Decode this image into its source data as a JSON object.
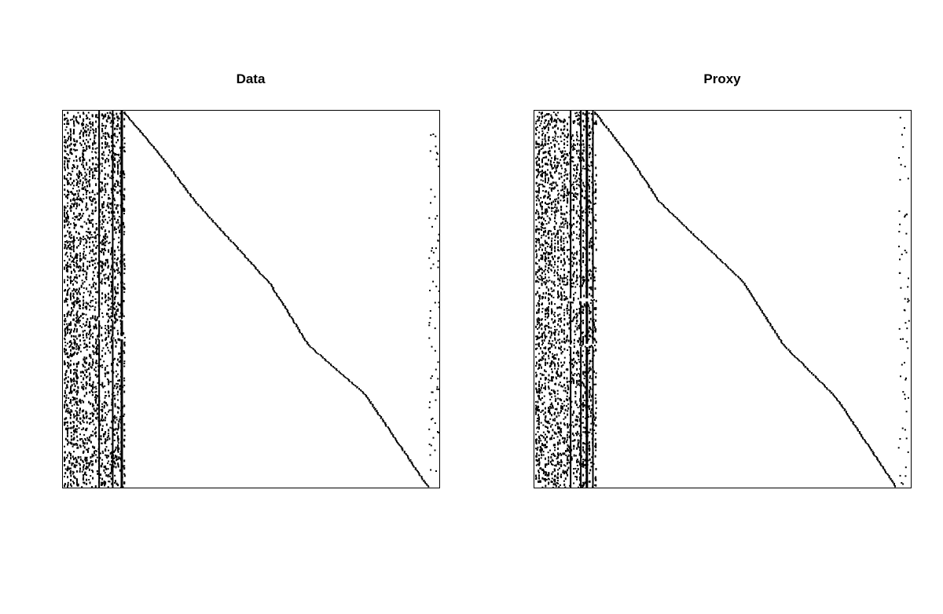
{
  "chart_data": [
    {
      "type": "heatmap",
      "title": "Data",
      "xlabel": "",
      "ylabel": "",
      "grid": false,
      "colors": {
        "filled": "#000000",
        "empty": "#ffffff",
        "frame": "#000000"
      },
      "dense_columns": [
        0.098,
        0.134,
        0.158
      ],
      "column_breaks": [
        0.55,
        0.6
      ],
      "diagonal": [
        [
          0.158,
          0.0
        ],
        [
          0.26,
          0.12
        ],
        [
          0.35,
          0.24
        ],
        [
          0.55,
          0.46
        ],
        [
          0.65,
          0.62
        ],
        [
          0.8,
          0.75
        ],
        [
          0.97,
          1.0
        ]
      ],
      "right_edge_columns": [
        0.975,
        0.99
      ]
    },
    {
      "type": "heatmap",
      "title": "Proxy",
      "xlabel": "",
      "ylabel": "",
      "grid": false,
      "colors": {
        "filled": "#000000",
        "empty": "#ffffff",
        "frame": "#000000"
      },
      "dense_columns": [
        0.098,
        0.125,
        0.141,
        0.157
      ],
      "column_breaks": [
        0.5,
        0.62
      ],
      "diagonal": [
        [
          0.157,
          0.0
        ],
        [
          0.25,
          0.12
        ],
        [
          0.33,
          0.24
        ],
        [
          0.55,
          0.45
        ],
        [
          0.66,
          0.62
        ],
        [
          0.8,
          0.76
        ],
        [
          0.96,
          1.0
        ]
      ],
      "right_edge_columns": [
        0.97,
        0.985
      ]
    }
  ]
}
